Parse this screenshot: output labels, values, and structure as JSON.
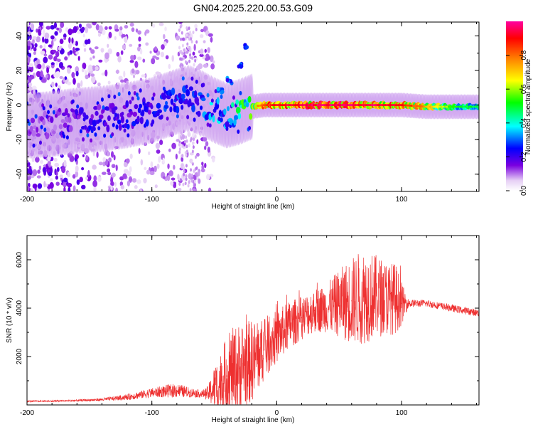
{
  "title": "GN04.2025.220.00.53.G09",
  "chart_data": [
    {
      "type": "heatmap",
      "xlabel": "Height of straight line (km)",
      "ylabel": "Frequency (Hz)",
      "xlim": [
        -200,
        162
      ],
      "ylim": [
        -50,
        48
      ],
      "xticks": [
        "-200",
        "-100",
        "0",
        "100"
      ],
      "xtick_values": [
        -200,
        -100,
        0,
        100
      ],
      "yticks": [
        "-40",
        "-20",
        "0",
        "20",
        "40"
      ],
      "ytick_values": [
        -40,
        -20,
        0,
        20,
        40
      ],
      "colorbar": {
        "label": "Normalized spectral amplitude",
        "ticks": [
          "0.0",
          "0.2",
          "0.4",
          "0.6",
          "0.8"
        ],
        "tick_values": [
          0.0,
          0.2,
          0.4,
          0.6,
          0.8
        ],
        "range": [
          0,
          1
        ]
      },
      "ridge": [
        {
          "x": -200,
          "y": -12,
          "amp": 0.15
        },
        {
          "x": -180,
          "y": -11,
          "amp": 0.18
        },
        {
          "x": -160,
          "y": -9,
          "amp": 0.22
        },
        {
          "x": -140,
          "y": -8,
          "amp": 0.25
        },
        {
          "x": -120,
          "y": -6,
          "amp": 0.28
        },
        {
          "x": -100,
          "y": -3,
          "amp": 0.3
        },
        {
          "x": -80,
          "y": 2,
          "amp": 0.35
        },
        {
          "x": -70,
          "y": 4,
          "amp": 0.32
        },
        {
          "x": -60,
          "y": 1,
          "amp": 0.4
        },
        {
          "x": -50,
          "y": -3,
          "amp": 0.42
        },
        {
          "x": -40,
          "y": -6,
          "amp": 0.4
        },
        {
          "x": -30,
          "y": -4,
          "amp": 0.55
        },
        {
          "x": -20,
          "y": -1,
          "amp": 0.7
        },
        {
          "x": -10,
          "y": 0,
          "amp": 0.85
        },
        {
          "x": 0,
          "y": 0,
          "amp": 0.9
        },
        {
          "x": 20,
          "y": 0,
          "amp": 0.95
        },
        {
          "x": 40,
          "y": 0,
          "amp": 0.95
        },
        {
          "x": 60,
          "y": 0,
          "amp": 0.95
        },
        {
          "x": 80,
          "y": 0,
          "amp": 0.95
        },
        {
          "x": 100,
          "y": 0,
          "amp": 0.9
        },
        {
          "x": 120,
          "y": -1,
          "amp": 0.75
        },
        {
          "x": 140,
          "y": -1,
          "amp": 0.55
        },
        {
          "x": 162,
          "y": -1,
          "amp": 0.45
        }
      ],
      "side_branch": [
        {
          "x": -45,
          "y": 8
        },
        {
          "x": -38,
          "y": 14
        },
        {
          "x": -30,
          "y": 22
        },
        {
          "x": -25,
          "y": 35
        }
      ]
    },
    {
      "type": "line",
      "xlabel": "Height of straight line (km)",
      "ylabel": "SNR (10 * v/v)",
      "xlim": [
        -200,
        162
      ],
      "ylim": [
        0,
        7000
      ],
      "xticks": [
        "-200",
        "-100",
        "0",
        "100"
      ],
      "xtick_values": [
        -200,
        -100,
        0,
        100
      ],
      "yticks": [
        "2000",
        "4000",
        "6000"
      ],
      "ytick_values": [
        2000,
        4000,
        6000
      ],
      "color": "#ee3030",
      "x": [
        -200,
        -180,
        -160,
        -140,
        -120,
        -100,
        -90,
        -80,
        -70,
        -60,
        -55,
        -50,
        -45,
        -40,
        -35,
        -30,
        -25,
        -20,
        -15,
        -10,
        -5,
        0,
        10,
        20,
        30,
        40,
        50,
        60,
        70,
        80,
        90,
        95,
        100,
        105,
        110,
        120,
        130,
        140,
        150,
        162
      ],
      "values": [
        150,
        160,
        180,
        220,
        320,
        500,
        560,
        600,
        520,
        450,
        480,
        700,
        900,
        1200,
        1400,
        1500,
        1700,
        1800,
        2000,
        2300,
        2600,
        2800,
        3300,
        3600,
        3900,
        4000,
        4200,
        4300,
        4500,
        4500,
        4400,
        4400,
        4200,
        4200,
        4200,
        4200,
        4100,
        4000,
        3900,
        3800
      ],
      "noise": [
        30,
        30,
        40,
        60,
        120,
        200,
        250,
        300,
        200,
        150,
        300,
        900,
        1300,
        1600,
        1800,
        1900,
        1800,
        1700,
        1500,
        1300,
        1200,
        1100,
        1000,
        900,
        900,
        1000,
        1400,
        1800,
        2000,
        1700,
        1500,
        1500,
        900,
        200,
        150,
        150,
        150,
        150,
        150,
        150
      ]
    }
  ]
}
